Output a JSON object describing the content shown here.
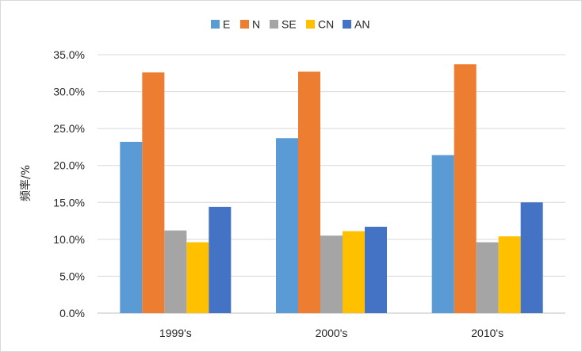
{
  "chart_data": {
    "type": "bar",
    "ylabel": "频率/%",
    "xlabel": "",
    "categories": [
      "1999's",
      "2000's",
      "2010's"
    ],
    "ylim": [
      0,
      35
    ],
    "yticks": [
      "0.0%",
      "5.0%",
      "10.0%",
      "15.0%",
      "20.0%",
      "25.0%",
      "30.0%",
      "35.0%"
    ],
    "grid": true,
    "legend_position": "top",
    "series": [
      {
        "name": "E",
        "color": "#5b9bd5",
        "values": [
          23.2,
          23.7,
          21.4
        ]
      },
      {
        "name": "N",
        "color": "#ed7d31",
        "values": [
          32.6,
          32.7,
          33.7
        ]
      },
      {
        "name": "SE",
        "color": "#a5a5a5",
        "values": [
          11.2,
          10.5,
          9.6
        ]
      },
      {
        "name": "CN",
        "color": "#ffc000",
        "values": [
          9.6,
          11.1,
          10.4
        ]
      },
      {
        "name": "AN",
        "color": "#4472c4",
        "values": [
          14.4,
          11.7,
          15.0
        ]
      }
    ]
  }
}
